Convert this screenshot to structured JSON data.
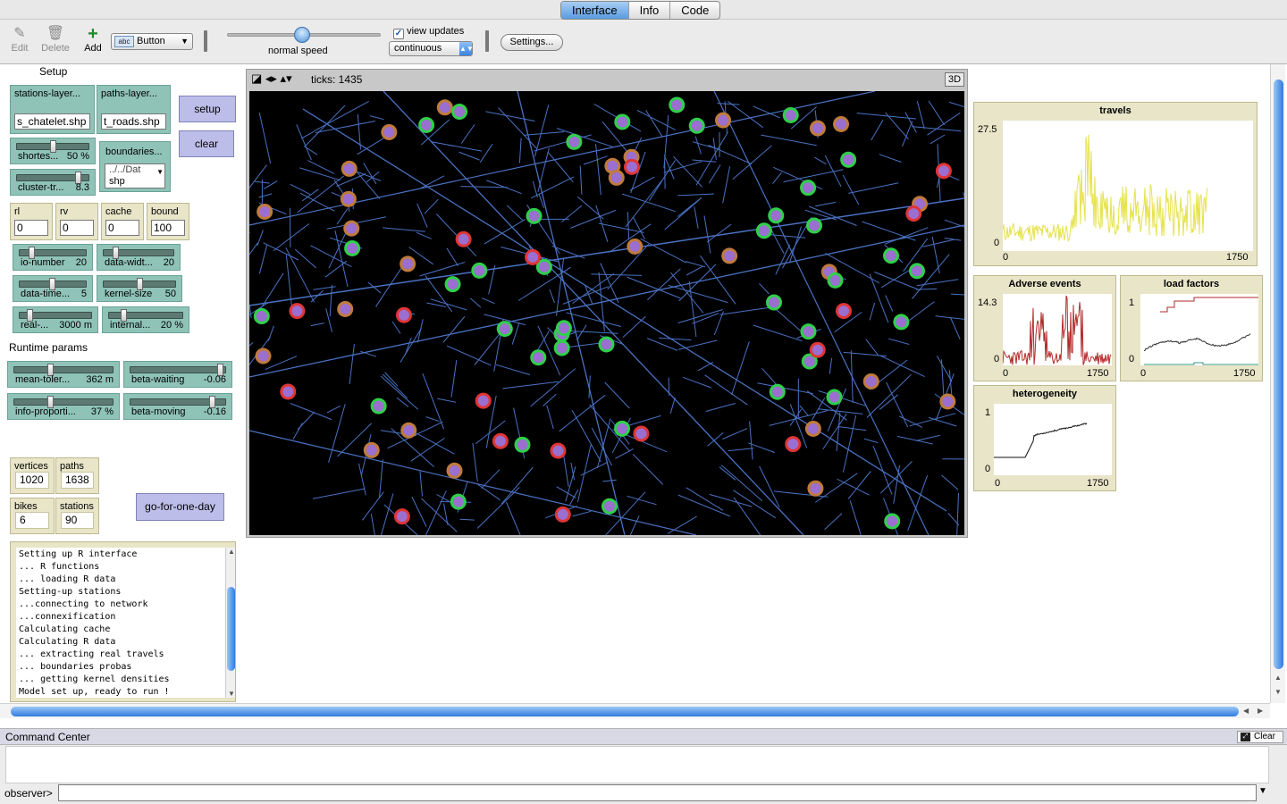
{
  "tabs": [
    "Interface",
    "Info",
    "Code"
  ],
  "toolbar": {
    "edit": "Edit",
    "delete": "Delete",
    "add": "Add",
    "widget_type": "Button",
    "widget_icon_text": "abc",
    "speed_label": "normal speed",
    "view_updates": "view updates",
    "update_mode": "continuous",
    "settings": "Settings..."
  },
  "panel": {
    "setup_heading": "Setup",
    "runtime_heading": "Runtime params",
    "stations_layer": {
      "label": "stations-layer...",
      "value": "s_chatelet.shp"
    },
    "paths_layer": {
      "label": "paths-layer...",
      "value": "t_roads.shp"
    },
    "boundaries": {
      "label": "boundaries...",
      "line1": "../../Dat",
      "line2": "shp"
    },
    "setup_btn": "setup",
    "clear_btn": "clear",
    "go_btn": "go-for-one-day",
    "sliders": {
      "shortest": {
        "label": "shortes...",
        "value": "50 %",
        "level": 0.5
      },
      "cluster": {
        "label": "cluster-tr...",
        "value": "8.3",
        "level": 0.83
      },
      "io_number": {
        "label": "io-number",
        "value": "20",
        "level": 0.2
      },
      "data_width": {
        "label": "data-widt...",
        "value": "20",
        "level": 0.2
      },
      "data_time": {
        "label": "data-time...",
        "value": "5",
        "level": 0.33
      },
      "kernel_size": {
        "label": "kernel-size",
        "value": "50",
        "level": 0.5
      },
      "real": {
        "label": "real-...",
        "value": "3000 m",
        "level": 0.15
      },
      "internal": {
        "label": "internal...",
        "value": "20 %",
        "level": 0.2
      },
      "mean_toler": {
        "label": "mean-toler...",
        "value": "362 m",
        "level": 0.38
      },
      "beta_waiting": {
        "label": "beta-waiting",
        "value": "-0.06",
        "level": 0.97
      },
      "info_prop": {
        "label": "info-proporti...",
        "value": "37 %",
        "level": 0.37
      },
      "beta_moving": {
        "label": "beta-moving",
        "value": "-0.16",
        "level": 0.9
      }
    },
    "inputs": {
      "rl": {
        "label": "rl",
        "value": "0"
      },
      "rv": {
        "label": "rv",
        "value": "0"
      },
      "cache": {
        "label": "cache",
        "value": "0"
      },
      "bound": {
        "label": "bound",
        "value": "100"
      }
    },
    "monitors": {
      "vertices": {
        "label": "vertices",
        "value": "1020"
      },
      "paths": {
        "label": "paths",
        "value": "1638"
      },
      "bikes": {
        "label": "bikes",
        "value": "6"
      },
      "stations": {
        "label": "stations",
        "value": "90"
      }
    },
    "output_lines": [
      "Setting up R interface",
      "... R functions",
      "... loading R data",
      "Setting-up stations",
      "...connecting to network",
      "...connexification",
      "Calculating cache",
      "Calculating R data",
      "... extracting real travels",
      "... boundaries probas",
      "... getting kernel densities",
      "Model set up, ready to run !"
    ]
  },
  "view": {
    "ticks": "ticks: 1435",
    "btn3d": "3D"
  },
  "plots": {
    "travels": {
      "title": "travels",
      "ymax": "27.5",
      "ymin": "0",
      "xmin": "0",
      "xmax": "1750",
      "color": "#e6e24a"
    },
    "adverse": {
      "title": "Adverse events",
      "ymax": "14.3",
      "ymin": "0",
      "xmin": "0",
      "xmax": "1750",
      "color": "#b22a2a"
    },
    "load": {
      "title": "load factors",
      "ymax": "1",
      "ymin": "0",
      "xmin": "0",
      "xmax": "1750"
    },
    "hetero": {
      "title": "heterogeneity",
      "ymax": "1",
      "ymin": "0",
      "xmin": "0",
      "xmax": "1750"
    }
  },
  "command_center": {
    "title": "Command Center",
    "clear": "Clear",
    "prompt": "observer>"
  },
  "colors": {
    "station_green": "#2fd04a",
    "station_orange": "#c07b3b",
    "station_red": "#e03535",
    "agent_purple": "#9b6fd0",
    "road": "#4a72c4"
  }
}
